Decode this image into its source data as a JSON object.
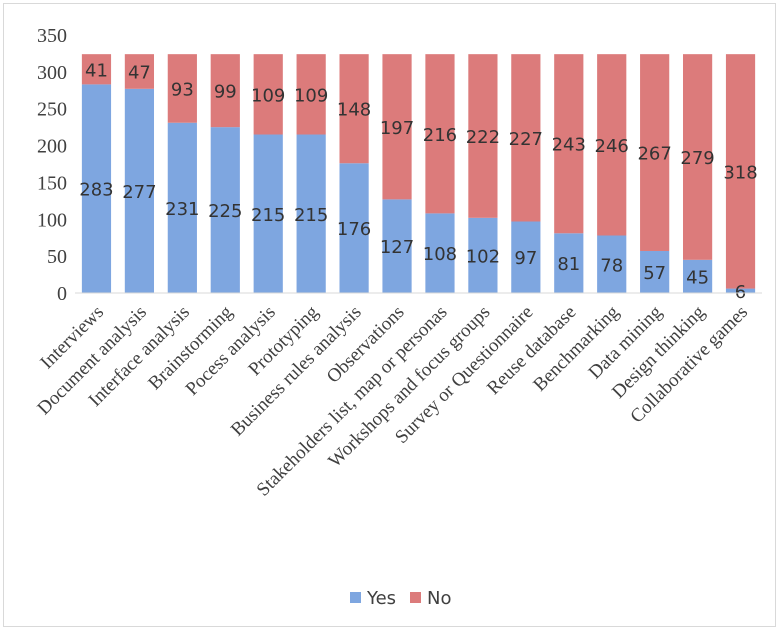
{
  "chart_data": {
    "type": "bar",
    "stacked": true,
    "title": "",
    "xlabel": "",
    "ylabel": "",
    "ylim": [
      0,
      350
    ],
    "yticks": [
      0,
      50,
      100,
      150,
      200,
      250,
      300,
      350
    ],
    "grid": false,
    "legend_position": "bottom",
    "categories": [
      "Interviews",
      "Document analysis",
      "Interface analysis",
      "Brainstorming",
      "Pocess analysis",
      "Prototyping",
      "Business rules analysis",
      "Observations",
      "Stakeholders list, map or personas",
      "Workshops and focus groups",
      "Survey or Questionnaire",
      "Reuse database",
      "Benchmarking",
      "Data mining",
      "Design thinking",
      "Collaborative games"
    ],
    "series": [
      {
        "name": "Yes",
        "color": "#7ea6e0",
        "values": [
          283,
          277,
          231,
          225,
          215,
          215,
          176,
          127,
          108,
          102,
          97,
          81,
          78,
          57,
          45,
          6
        ]
      },
      {
        "name": "No",
        "color": "#dc7b7b",
        "values": [
          41,
          47,
          93,
          99,
          109,
          109,
          148,
          197,
          216,
          222,
          227,
          243,
          246,
          267,
          279,
          318
        ]
      }
    ]
  }
}
